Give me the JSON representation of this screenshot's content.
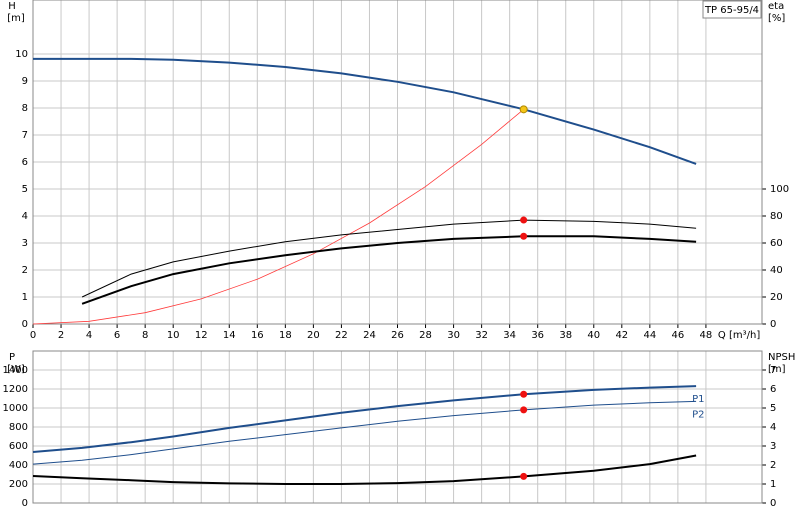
{
  "chart_data": [
    {
      "type": "line",
      "model": "TP 65-95/4",
      "xlabel": "Q [m³/h]",
      "ylabel": "H",
      "yunit": "[m]",
      "y2label": "eta",
      "y2unit": "[%]",
      "xlim": [
        0,
        52
      ],
      "xticks": [
        0,
        2,
        4,
        6,
        8,
        10,
        12,
        14,
        16,
        18,
        20,
        22,
        24,
        26,
        28,
        30,
        32,
        34,
        36,
        38,
        40,
        42,
        44,
        46,
        48
      ],
      "ylim": [
        0,
        12
      ],
      "yticks": [
        0,
        1,
        2,
        3,
        4,
        5,
        6,
        7,
        8,
        9,
        10
      ],
      "y2lim": [
        0,
        240
      ],
      "y2ticks": [
        0,
        20,
        40,
        60,
        80,
        100
      ],
      "grid": true,
      "series": [
        {
          "color": "#1f4e8c",
          "line_width": 2,
          "axis": "y",
          "x": [
            0,
            3.5,
            7,
            10,
            14,
            18,
            22,
            26,
            30,
            35,
            40,
            44,
            47.3
          ],
          "values": [
            9.82,
            9.82,
            9.82,
            9.79,
            9.68,
            9.52,
            9.28,
            8.97,
            8.58,
            7.95,
            7.2,
            6.55,
            5.93
          ]
        },
        {
          "color": "#ff3b3b",
          "line_width": 0.8,
          "axis": "y",
          "x": [
            0,
            4,
            8,
            12,
            16,
            20,
            24,
            28,
            32,
            35
          ],
          "values": [
            0,
            0.1,
            0.42,
            0.93,
            1.66,
            2.6,
            3.74,
            5.09,
            6.65,
            7.95
          ]
        },
        {
          "color": "#000000",
          "line_width": 1,
          "axis": "y2",
          "x": [
            3.5,
            7,
            10,
            14,
            18,
            22,
            26,
            30,
            35,
            40,
            44,
            47.3
          ],
          "values": [
            20,
            37,
            46,
            54,
            61,
            66,
            70,
            74,
            77,
            76,
            74,
            71
          ]
        },
        {
          "color": "#000000",
          "line_width": 2,
          "axis": "y2",
          "x": [
            3.5,
            7,
            10,
            14,
            18,
            22,
            26,
            30,
            35,
            40,
            44,
            47.3
          ],
          "values": [
            15,
            28,
            37,
            45,
            51,
            56,
            60,
            63,
            65,
            65,
            63,
            61
          ]
        }
      ],
      "markers": [
        {
          "x": 35,
          "y": 7.95,
          "axis": "y",
          "color": "#f5c518"
        },
        {
          "x": 35,
          "y": 77,
          "axis": "y2",
          "color": "#ee1111"
        },
        {
          "x": 35,
          "y": 65,
          "axis": "y2",
          "color": "#ee1111"
        }
      ]
    },
    {
      "type": "line",
      "ylabel": "P",
      "yunit": "[W]",
      "y2label": "NPSH",
      "y2unit": "[m]",
      "xlim": [
        0,
        52
      ],
      "ylim": [
        0,
        1600
      ],
      "yticks": [
        0,
        200,
        400,
        600,
        800,
        1000,
        1200,
        1400
      ],
      "y2lim": [
        0,
        8
      ],
      "y2ticks": [
        0,
        1,
        2,
        3,
        4,
        5,
        6,
        7
      ],
      "grid": true,
      "series": [
        {
          "name": "P1",
          "color": "#1f4e8c",
          "line_width": 2,
          "axis": "y",
          "x": [
            0,
            3.5,
            7,
            10,
            14,
            18,
            22,
            26,
            30,
            35,
            40,
            44,
            47.3
          ],
          "values": [
            537,
            580,
            640,
            700,
            790,
            870,
            950,
            1020,
            1080,
            1145,
            1190,
            1215,
            1230
          ]
        },
        {
          "name": "P2",
          "color": "#1f4e8c",
          "line_width": 1,
          "axis": "y",
          "x": [
            0,
            3.5,
            7,
            10,
            14,
            18,
            22,
            26,
            30,
            35,
            40,
            44,
            47.3
          ],
          "values": [
            410,
            450,
            510,
            570,
            650,
            720,
            790,
            860,
            920,
            980,
            1030,
            1055,
            1070
          ]
        },
        {
          "color": "#000000",
          "line_width": 2,
          "axis": "y2",
          "x": [
            0,
            3.5,
            7,
            10,
            14,
            18,
            22,
            26,
            30,
            35,
            40,
            44,
            47.3
          ],
          "values": [
            1.42,
            1.3,
            1.2,
            1.1,
            1.03,
            1.0,
            1.0,
            1.05,
            1.15,
            1.4,
            1.7,
            2.05,
            2.5
          ]
        }
      ],
      "markers": [
        {
          "x": 35,
          "y": 1145,
          "axis": "y",
          "color": "#ee1111"
        },
        {
          "x": 35,
          "y": 980,
          "axis": "y",
          "color": "#ee1111"
        },
        {
          "x": 35,
          "y": 1.4,
          "axis": "y2",
          "color": "#ee1111"
        }
      ]
    }
  ]
}
